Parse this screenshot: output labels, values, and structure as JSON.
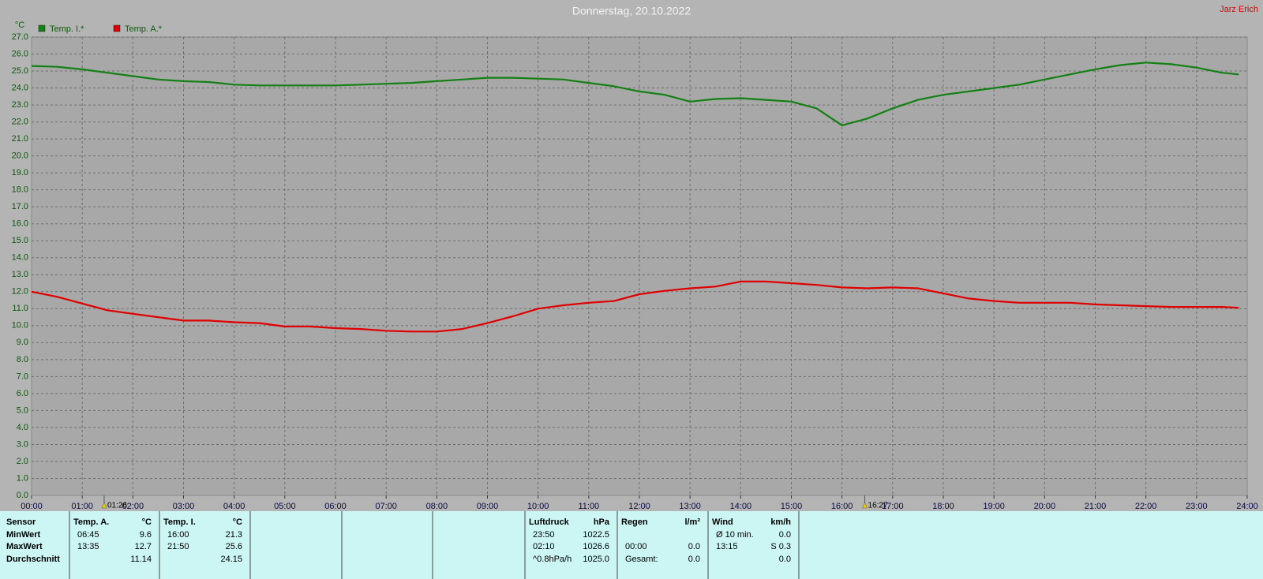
{
  "author": "Jarz Erich",
  "chart_data": {
    "type": "line",
    "title": "Donnerstag, 20.10.2022",
    "y_label": "°C",
    "grid": true,
    "x": [
      "00:00",
      "00:30",
      "01:00",
      "01:30",
      "02:00",
      "02:30",
      "03:00",
      "03:30",
      "04:00",
      "04:30",
      "05:00",
      "05:30",
      "06:00",
      "06:30",
      "07:00",
      "07:30",
      "08:00",
      "08:30",
      "09:00",
      "09:30",
      "10:00",
      "10:30",
      "11:00",
      "11:30",
      "12:00",
      "12:30",
      "13:00",
      "13:30",
      "14:00",
      "14:30",
      "15:00",
      "15:30",
      "16:00",
      "16:30",
      "17:00",
      "17:30",
      "18:00",
      "18:30",
      "19:00",
      "19:30",
      "20:00",
      "20:30",
      "21:00",
      "21:30",
      "22:00",
      "22:30",
      "23:00",
      "23:30",
      "23:50"
    ],
    "series": [
      {
        "name": "Temp. I.*",
        "color": "#138013",
        "values": [
          25.3,
          25.25,
          25.1,
          24.9,
          24.7,
          24.5,
          24.4,
          24.35,
          24.2,
          24.15,
          24.15,
          24.15,
          24.15,
          24.2,
          24.25,
          24.3,
          24.4,
          24.5,
          24.6,
          24.6,
          24.55,
          24.5,
          24.3,
          24.1,
          23.8,
          23.6,
          23.2,
          23.35,
          23.4,
          23.3,
          23.2,
          22.8,
          21.8,
          22.2,
          22.8,
          23.3,
          23.6,
          23.8,
          24.0,
          24.2,
          24.5,
          24.8,
          25.1,
          25.35,
          25.5,
          25.4,
          25.2,
          24.9,
          24.8
        ]
      },
      {
        "name": "Temp. A.*",
        "color": "#e00000",
        "values": [
          12.0,
          11.7,
          11.3,
          10.9,
          10.7,
          10.5,
          10.3,
          10.3,
          10.2,
          10.15,
          9.95,
          9.95,
          9.85,
          9.8,
          9.7,
          9.65,
          9.65,
          9.8,
          10.15,
          10.55,
          11.0,
          11.2,
          11.35,
          11.45,
          11.85,
          12.05,
          12.2,
          12.3,
          12.6,
          12.6,
          12.5,
          12.4,
          12.25,
          12.2,
          12.25,
          12.2,
          11.9,
          11.6,
          11.45,
          11.35,
          11.35,
          11.35,
          11.25,
          11.2,
          11.15,
          11.1,
          11.1,
          11.1,
          11.05
        ]
      }
    ],
    "xlim": [
      "00:00",
      "24:00"
    ],
    "xticks": [
      "00:00",
      "01:00",
      "02:00",
      "03:00",
      "04:00",
      "05:00",
      "06:00",
      "07:00",
      "08:00",
      "09:00",
      "10:00",
      "11:00",
      "12:00",
      "13:00",
      "14:00",
      "15:00",
      "16:00",
      "17:00",
      "18:00",
      "19:00",
      "20:00",
      "21:00",
      "22:00",
      "23:00",
      "24:00"
    ],
    "ylim": [
      0,
      27
    ],
    "yticks": [
      {
        "value": 0,
        "label": "0.0"
      },
      {
        "value": 1,
        "label": "1.0"
      },
      {
        "value": 2,
        "label": "2.0"
      },
      {
        "value": 3,
        "label": "3.0"
      },
      {
        "value": 4,
        "label": "4.0"
      },
      {
        "value": 5,
        "label": "5.0"
      },
      {
        "value": 6,
        "label": "6.0"
      },
      {
        "value": 7,
        "label": "7.0"
      },
      {
        "value": 8,
        "label": "8.0"
      },
      {
        "value": 9,
        "label": "9.0"
      },
      {
        "value": 10,
        "label": "10.0"
      },
      {
        "value": 11,
        "label": "11.0"
      },
      {
        "value": 12,
        "label": "12.0"
      },
      {
        "value": 13,
        "label": "13.0"
      },
      {
        "value": 14,
        "label": "14.0"
      },
      {
        "value": 15,
        "label": "15.0"
      },
      {
        "value": 16,
        "label": "16.0"
      },
      {
        "value": 17,
        "label": "17.0"
      },
      {
        "value": 18,
        "label": "18.0"
      },
      {
        "value": 19,
        "label": "19.0"
      },
      {
        "value": 20,
        "label": "20.0"
      },
      {
        "value": 21,
        "label": "21.0"
      },
      {
        "value": 22,
        "label": "22.0"
      },
      {
        "value": 23,
        "label": "23.0"
      },
      {
        "value": 24,
        "label": "24.0"
      },
      {
        "value": 25,
        "label": "25.0"
      },
      {
        "value": 26,
        "label": "26.0"
      },
      {
        "value": 27,
        "label": "27.0"
      }
    ],
    "annotations": [
      "01:26",
      "16:27"
    ]
  },
  "stats": {
    "row_labels": [
      "Sensor",
      "MinWert",
      "MaxWert",
      "Durchschnitt"
    ],
    "blocks": [
      {
        "title": "Temp. A.",
        "unit": "°C",
        "rows": [
          {
            "left": "06:45",
            "right": "9.6"
          },
          {
            "left": "13:35",
            "right": "12.7"
          },
          {
            "right": "11.14"
          }
        ]
      },
      {
        "title": "Temp. I.",
        "unit": "°C",
        "rows": [
          {
            "left": "16:00",
            "right": "21.3"
          },
          {
            "left": "21:50",
            "right": "25.6"
          },
          {
            "right": "24.15"
          }
        ]
      },
      {
        "title": "Luftdruck",
        "unit": "hPa",
        "rows": [
          {
            "left": "23:50",
            "right": "1022.5"
          },
          {
            "left": "02:10",
            "right": "1026.6"
          },
          {
            "left": "^0.8hPa/h",
            "right": "1025.0"
          }
        ]
      },
      {
        "title": "Regen",
        "unit": "l/m²",
        "rows": [
          null,
          {
            "left": "00:00",
            "right": "0.0"
          },
          {
            "left": "Gesamt:",
            "right": "0.0"
          }
        ]
      },
      {
        "title": "Wind",
        "unit": "km/h",
        "rows": [
          {
            "left": "Ø 10 min.",
            "right": "0.0"
          },
          {
            "left": "13:15",
            "right": "S 0.3"
          },
          {
            "right": "0.0"
          }
        ]
      }
    ]
  }
}
